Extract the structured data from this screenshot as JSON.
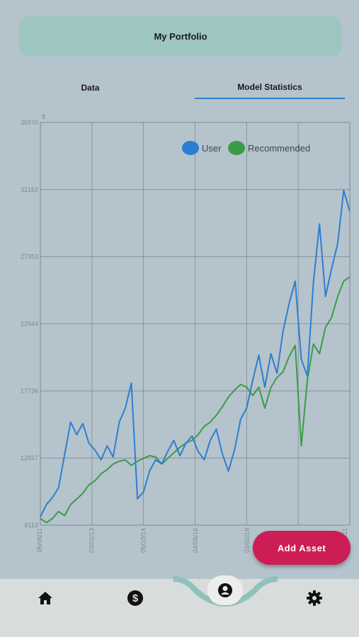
{
  "header": {
    "title": "My Portfolio"
  },
  "tabs": [
    {
      "label": "Data",
      "active": false
    },
    {
      "label": "Model Statistics",
      "active": true
    }
  ],
  "chart_data": {
    "type": "line",
    "y_unit_label": "$",
    "ylim": [
      8119,
      36970
    ],
    "y_ticks": [
      "36970",
      "32162",
      "27353",
      "22544",
      "17736",
      "12927",
      "8119"
    ],
    "x_ticks": [
      "05/06/11",
      "03/02/13",
      "05/10/14",
      "04/06/16",
      "03/02/18",
      "04/01/21"
    ],
    "grid": true,
    "legend_position": "top-right",
    "series": [
      {
        "name": "User",
        "color": "#2b7fd1",
        "values": [
          8700,
          9600,
          10100,
          10800,
          13200,
          15500,
          14600,
          15400,
          14000,
          13500,
          12800,
          13800,
          13000,
          15500,
          16500,
          18300,
          10000,
          10500,
          12000,
          12800,
          12500,
          13400,
          14200,
          13100,
          14000,
          14500,
          13400,
          12800,
          14200,
          15000,
          13200,
          12000,
          13500,
          15700,
          16500,
          18500,
          20300,
          18000,
          20400,
          19000,
          22000,
          24000,
          25600,
          20000,
          18800,
          25500,
          29700,
          24500,
          26500,
          28300,
          32100,
          30600
        ]
      },
      {
        "name": "Recommended",
        "color": "#3a9c47",
        "values": [
          8600,
          8300,
          8600,
          9100,
          8800,
          9600,
          10000,
          10400,
          11000,
          11300,
          11800,
          12100,
          12500,
          12700,
          12800,
          12400,
          12700,
          12900,
          13100,
          13000,
          12500,
          12900,
          13300,
          13700,
          14000,
          14200,
          14600,
          15200,
          15500,
          16000,
          16600,
          17300,
          17800,
          18200,
          18000,
          17400,
          18000,
          16500,
          18000,
          18700,
          19100,
          20200,
          21000,
          13800,
          18500,
          21100,
          20400,
          22300,
          23000,
          24500,
          25600,
          25900
        ]
      }
    ]
  },
  "fab": {
    "label": "Add Asset"
  },
  "nav": {
    "home": "home-icon",
    "money": "dollar-icon",
    "profile": "profile-icon",
    "settings": "gear-icon"
  }
}
